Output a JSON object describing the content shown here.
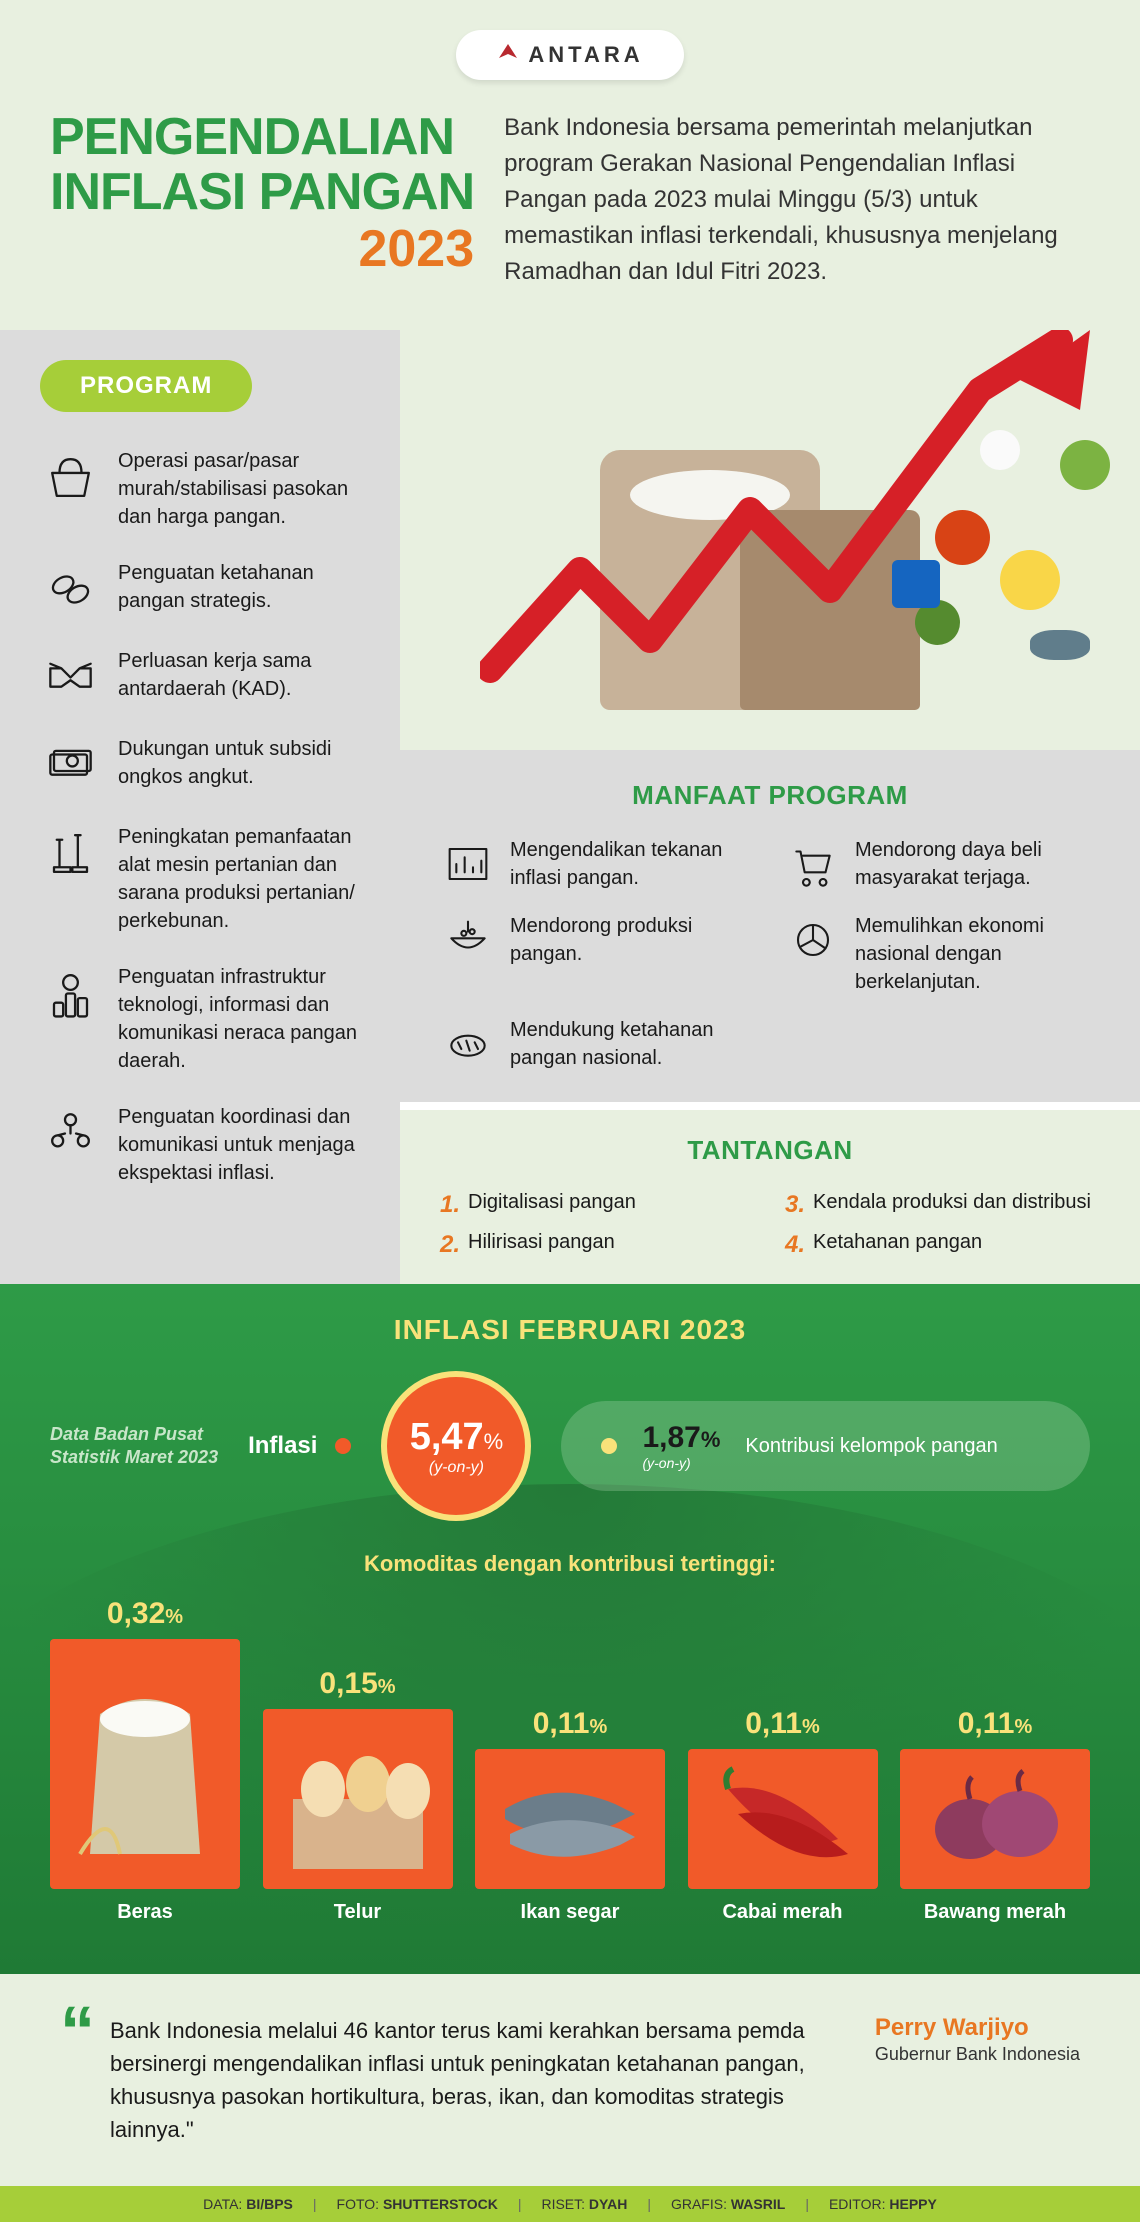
{
  "logo": {
    "brand": "ANTARA"
  },
  "header": {
    "title_line1": "PENGENDALIAN",
    "title_line2": "INFLASI PANGAN",
    "title_year": "2023",
    "intro": "Bank Indonesia bersama pemerintah melanjutkan program Gerakan Nasional Pengendalian Inflasi Pangan pada 2023 mulai Minggu (5/3) untuk memastikan inflasi terkendali, khususnya menjelang Ramadhan dan Idul Fitri 2023."
  },
  "colors": {
    "green": "#2e9b47",
    "dark_green": "#1f7a35",
    "orange": "#e87722",
    "orange_bright": "#f15a29",
    "lime": "#a6ce39",
    "yellow": "#f9e27a",
    "page_bg": "#e8f0e0",
    "gray_panel": "#dcdcdc",
    "text": "#1a1a1a",
    "red_arrow": "#d62027"
  },
  "program": {
    "title": "PROGRAM",
    "items": [
      {
        "icon": "basket-icon",
        "text": "Operasi pasar/pasar murah/stabilisasi pasokan dan harga pangan."
      },
      {
        "icon": "chain-icon",
        "text": "Penguatan ketahanan pangan strategis."
      },
      {
        "icon": "handshake-icon",
        "text": "Perluasan kerja sama antardaerah (KAD)."
      },
      {
        "icon": "money-icon",
        "text": "Dukungan untuk subsidi ongkos angkut."
      },
      {
        "icon": "tools-icon",
        "text": "Peningkatan pemanfaatan alat mesin pertanian dan sarana produksi pertanian/ perkebunan."
      },
      {
        "icon": "server-icon",
        "text": "Penguatan infrastruktur teknologi, informasi dan komunikasi neraca pangan daerah."
      },
      {
        "icon": "people-icon",
        "text": "Penguatan koordinasi dan komunikasi untuk menjaga ekspektasi inflasi."
      }
    ]
  },
  "manfaat": {
    "title": "MANFAAT PROGRAM",
    "items": [
      {
        "icon": "chart-icon",
        "text": "Mengendalikan tekanan inflasi pangan."
      },
      {
        "icon": "cart-icon",
        "text": "Mendorong daya beli masyarakat terjaga."
      },
      {
        "icon": "bowl-icon",
        "text": "Mendorong produksi pangan."
      },
      {
        "icon": "pie-icon",
        "text": "Memulihkan ekonomi nasional dengan berkelanjutan."
      },
      {
        "icon": "bread-icon",
        "text": "Mendukung ketahanan pangan nasional."
      }
    ]
  },
  "tantangan": {
    "title": "TANTANGAN",
    "items": [
      {
        "num": "1.",
        "text": "Digitalisasi pangan"
      },
      {
        "num": "3.",
        "text": "Kendala produksi dan distribusi"
      },
      {
        "num": "2.",
        "text": "Hilirisasi pangan"
      },
      {
        "num": "4.",
        "text": "Ketahanan pangan"
      }
    ]
  },
  "inflasi": {
    "title": "INFLASI FEBRUARI 2023",
    "data_note_line1": "Data Badan Pusat",
    "data_note_line2": "Statistik Maret 2023",
    "main_label": "Inflasi",
    "main_value": "5,47",
    "main_pct": "%",
    "main_sub": "(y-on-y)",
    "kontrib_value": "1,87",
    "kontrib_pct": "%",
    "kontrib_sub": "(y-on-y)",
    "kontrib_desc": "Kontribusi kelompok pangan",
    "commodities_title": "Komoditas dengan kontribusi tertinggi:",
    "commodities": [
      {
        "value": "0,32",
        "pct": "%",
        "label": "Beras",
        "size": "h1",
        "img": "rice"
      },
      {
        "value": "0,15",
        "pct": "%",
        "label": "Telur",
        "size": "h2",
        "img": "eggs"
      },
      {
        "value": "0,11",
        "pct": "%",
        "label": "Ikan segar",
        "size": "h3",
        "img": "fish"
      },
      {
        "value": "0,11",
        "pct": "%",
        "label": "Cabai merah",
        "size": "h3",
        "img": "chili"
      },
      {
        "value": "0,11",
        "pct": "%",
        "label": "Bawang merah",
        "size": "h3",
        "img": "onion"
      }
    ]
  },
  "quote": {
    "text": "Bank Indonesia melalui 46 kantor terus kami kerahkan bersama pemda bersinergi mengendalikan inflasi untuk peningkatan ketahanan pangan, khususnya pasokan hortikultura, beras, ikan, dan komoditas strategis lainnya.\"",
    "name": "Perry Warjiyo",
    "role": "Gubernur Bank Indonesia"
  },
  "footer": {
    "items": [
      {
        "label": "DATA:",
        "value": "BI/BPS"
      },
      {
        "label": "FOTO:",
        "value": "SHUTTERSTOCK"
      },
      {
        "label": "RISET:",
        "value": "DYAH"
      },
      {
        "label": "GRAFIS:",
        "value": "WASRIL"
      },
      {
        "label": "EDITOR:",
        "value": "HEPPY"
      }
    ]
  }
}
